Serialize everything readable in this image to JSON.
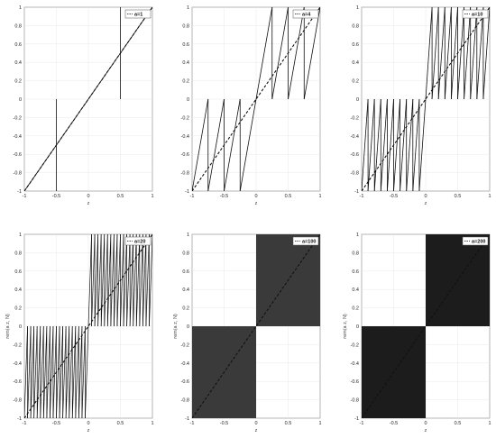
{
  "chart_data": [
    {
      "type": "line",
      "a": 1,
      "legend": "a=1",
      "xlabel": "z",
      "ylabel": "",
      "xlim": [
        -1,
        1
      ],
      "ylim": [
        -1,
        1
      ],
      "xticks": [
        "-1",
        "-0.5",
        "0",
        "0.5",
        "1"
      ],
      "yticks": [
        "-1",
        "-0.8",
        "-0.6",
        "-0.4",
        "-0.2",
        "0",
        "0.2",
        "0.4",
        "0.6",
        "0.8",
        "1"
      ],
      "series": [
        {
          "style": "solid",
          "formula": "sawtooth"
        },
        {
          "style": "dashed",
          "x": [
            -1,
            1
          ],
          "y": [
            -1,
            1
          ]
        }
      ],
      "grid": true,
      "legend_position": "top-right"
    },
    {
      "type": "line",
      "a": 4,
      "legend": "a=4",
      "xlabel": "z",
      "ylabel": "",
      "xlim": [
        -1,
        1
      ],
      "ylim": [
        -1,
        1
      ],
      "xticks": [
        "-1",
        "-0.5",
        "0",
        "0.5",
        "1"
      ],
      "yticks": [
        "-1",
        "-0.8",
        "-0.6",
        "-0.4",
        "-0.2",
        "0",
        "0.2",
        "0.4",
        "0.6",
        "0.8",
        "1"
      ],
      "series": [
        {
          "style": "solid",
          "formula": "sawtooth"
        },
        {
          "style": "dashed",
          "x": [
            -1,
            1
          ],
          "y": [
            -1,
            1
          ]
        }
      ],
      "grid": true,
      "legend_position": "top-right"
    },
    {
      "type": "line",
      "a": 10,
      "legend": "a=10",
      "xlabel": "z",
      "ylabel": "",
      "xlim": [
        -1,
        1
      ],
      "ylim": [
        -1,
        1
      ],
      "xticks": [
        "-1",
        "-0.5",
        "0",
        "0.5",
        "1"
      ],
      "yticks": [
        "-1",
        "-0.8",
        "-0.6",
        "-0.4",
        "-0.2",
        "0",
        "0.2",
        "0.4",
        "0.6",
        "0.8",
        "1"
      ],
      "series": [
        {
          "style": "solid",
          "formula": "sawtooth"
        },
        {
          "style": "dashed",
          "x": [
            -1,
            1
          ],
          "y": [
            -1,
            1
          ]
        }
      ],
      "grid": true,
      "legend_position": "top-right"
    },
    {
      "type": "line",
      "a": 20,
      "legend": "a=20",
      "xlabel": "z",
      "ylabel": "rem(a z, N)",
      "xlim": [
        -1,
        1
      ],
      "ylim": [
        -1,
        1
      ],
      "xticks": [
        "-1",
        "-0.5",
        "0",
        "0.5",
        "1"
      ],
      "yticks": [
        "-1",
        "-0.8",
        "-0.6",
        "-0.4",
        "-0.2",
        "0",
        "0.2",
        "0.4",
        "0.6",
        "0.8",
        "1"
      ],
      "series": [
        {
          "style": "solid",
          "formula": "sawtooth"
        },
        {
          "style": "dashed",
          "x": [
            -1,
            1
          ],
          "y": [
            -1,
            1
          ]
        }
      ],
      "grid": true,
      "legend_position": "top-right"
    },
    {
      "type": "line",
      "a": 100,
      "legend": "a=100",
      "xlabel": "z",
      "ylabel": "rem(a z, N)",
      "xlim": [
        -1,
        1
      ],
      "ylim": [
        -1,
        1
      ],
      "xticks": [
        "-1",
        "-0.5",
        "0",
        "0.5",
        "1"
      ],
      "yticks": [
        "-1",
        "-0.8",
        "-0.6",
        "-0.4",
        "-0.2",
        "0",
        "0.2",
        "0.4",
        "0.6",
        "0.8",
        "1"
      ],
      "series": [
        {
          "style": "solid",
          "formula": "sawtooth"
        },
        {
          "style": "dashed",
          "x": [
            -1,
            1
          ],
          "y": [
            -1,
            1
          ]
        }
      ],
      "grid": true,
      "legend_position": "top-right"
    },
    {
      "type": "line",
      "a": 200,
      "legend": "a=200",
      "xlabel": "z",
      "ylabel": "rem(a z, N)",
      "xlim": [
        -1,
        1
      ],
      "ylim": [
        -1,
        1
      ],
      "xticks": [
        "-1",
        "-0.5",
        "0",
        "0.5",
        "1"
      ],
      "yticks": [
        "-1",
        "-0.8",
        "-0.6",
        "-0.4",
        "-0.2",
        "0",
        "0.2",
        "0.4",
        "0.6",
        "0.8",
        "1"
      ],
      "series": [
        {
          "style": "solid",
          "formula": "sawtooth"
        },
        {
          "style": "dashed",
          "x": [
            -1,
            1
          ],
          "y": [
            -1,
            1
          ]
        }
      ],
      "grid": true,
      "legend_position": "top-right"
    }
  ],
  "colors": {
    "curve": "#111111",
    "dashed": "#111111",
    "dense_fill_a100": "#3a3a3a",
    "dense_fill_a200": "#1c1c1c"
  }
}
